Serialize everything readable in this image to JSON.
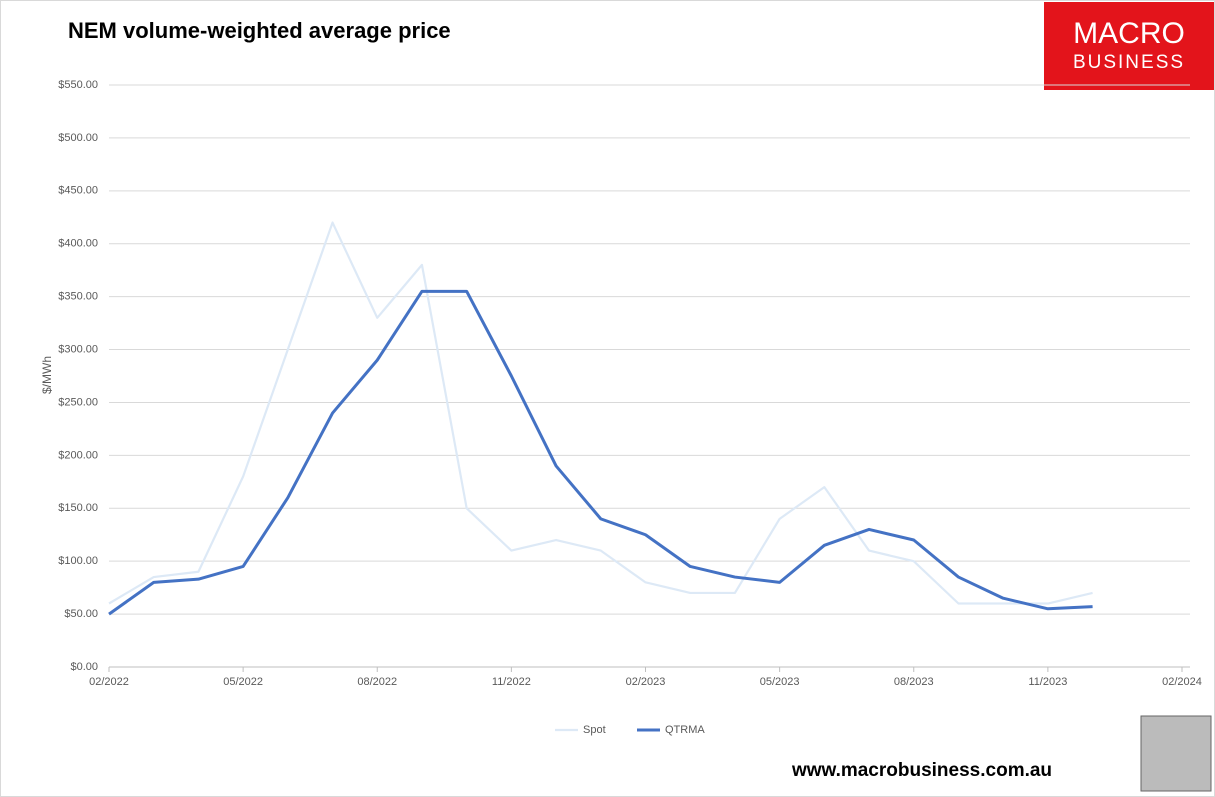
{
  "chart_data": {
    "type": "line",
    "title": "NEM volume-weighted average price",
    "y_label": "$/MWh",
    "brand": [
      "MACRO",
      "BUSINESS"
    ],
    "footer": "www.macrobusiness.com.au",
    "x": [
      "2022-02",
      "2022-03",
      "2022-04",
      "2022-05",
      "2022-06",
      "2022-07",
      "2022-08",
      "2022-09",
      "2022-10",
      "2022-11",
      "2022-12",
      "2023-01",
      "2023-02",
      "2023-03",
      "2023-04",
      "2023-05",
      "2023-06",
      "2023-07",
      "2023-08",
      "2023-09",
      "2023-10",
      "2023-11",
      "2023-12"
    ],
    "series": [
      {
        "name": "Spot",
        "color": "#dde9f6",
        "width": 2.2,
        "values": [
          60,
          85,
          90,
          180,
          300,
          420,
          330,
          380,
          150,
          110,
          120,
          110,
          80,
          70,
          70,
          140,
          170,
          110,
          100,
          60,
          60,
          60,
          70
        ]
      },
      {
        "name": "QTRMA",
        "color": "#4472c4",
        "width": 3,
        "values": [
          50,
          80,
          83,
          95,
          160,
          240,
          290,
          355,
          355,
          275,
          190,
          140,
          125,
          95,
          85,
          80,
          115,
          130,
          120,
          85,
          65,
          55,
          57
        ]
      }
    ],
    "xlim": [
      "2022-02",
      "2024-02"
    ],
    "xticks": [
      {
        "value": "2022-02",
        "label": "02/2022"
      },
      {
        "value": "2022-05",
        "label": "05/2022"
      },
      {
        "value": "2022-08",
        "label": "08/2022"
      },
      {
        "value": "2022-11",
        "label": "11/2022"
      },
      {
        "value": "2023-02",
        "label": "02/2023"
      },
      {
        "value": "2023-05",
        "label": "05/2023"
      },
      {
        "value": "2023-08",
        "label": "08/2023"
      },
      {
        "value": "2023-11",
        "label": "11/2023"
      },
      {
        "value": "2024-02",
        "label": "02/2024"
      }
    ],
    "ylim": [
      0,
      550
    ],
    "yticks": [
      {
        "value": 0,
        "label": "$0.00"
      },
      {
        "value": 50,
        "label": "$50.00"
      },
      {
        "value": 100,
        "label": "$100.00"
      },
      {
        "value": 150,
        "label": "$150.00"
      },
      {
        "value": 200,
        "label": "$200.00"
      },
      {
        "value": 250,
        "label": "$250.00"
      },
      {
        "value": 300,
        "label": "$300.00"
      },
      {
        "value": 350,
        "label": "$350.00"
      },
      {
        "value": 400,
        "label": "$400.00"
      },
      {
        "value": 450,
        "label": "$450.00"
      },
      {
        "value": 500,
        "label": "$500.00"
      },
      {
        "value": 550,
        "label": "$550.00"
      }
    ],
    "grid": true,
    "legend": "bottom"
  }
}
